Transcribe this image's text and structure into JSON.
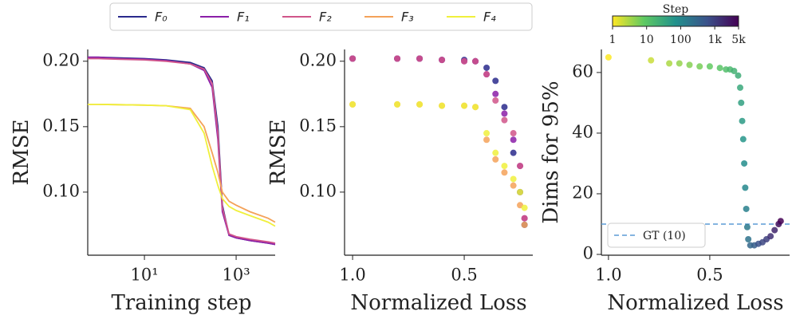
{
  "chart_data": [
    {
      "type": "line",
      "x_scale": "log",
      "xlabel": "Training step",
      "ylabel": "RMSE",
      "x": [
        0.58,
        1,
        3,
        10,
        30,
        100,
        200,
        300,
        400,
        500,
        700,
        1000,
        2000,
        5000,
        7100
      ],
      "xlim": [
        0.58,
        7100
      ],
      "xticks": [
        {
          "value": 10,
          "label": "10¹"
        },
        {
          "value": 1000,
          "label": "10³"
        }
      ],
      "ylim": [
        0.0518,
        0.209
      ],
      "yticks": [
        {
          "value": 0.2,
          "label": "0.20"
        },
        0.15,
        {
          "value": 0.1,
          "label": "0.10"
        }
      ],
      "series": [
        {
          "name": "F₀",
          "color": "#2a2a8c",
          "values": [
            0.203,
            0.203,
            0.2025,
            0.202,
            0.201,
            0.199,
            0.195,
            0.185,
            0.15,
            0.09,
            0.067,
            0.065,
            0.063,
            0.061,
            0.06
          ]
        },
        {
          "name": "F₁",
          "color": "#8b1fa8",
          "values": [
            0.203,
            0.203,
            0.202,
            0.2015,
            0.2005,
            0.198,
            0.193,
            0.18,
            0.14,
            0.085,
            0.067,
            0.065,
            0.063,
            0.061,
            0.06
          ]
        },
        {
          "name": "F₂",
          "color": "#d0558a",
          "values": [
            0.202,
            0.202,
            0.2015,
            0.201,
            0.2,
            0.198,
            0.194,
            0.183,
            0.145,
            0.088,
            0.068,
            0.066,
            0.064,
            0.062,
            0.061
          ]
        },
        {
          "name": "F₃",
          "color": "#f4a259",
          "values": [
            0.167,
            0.167,
            0.1668,
            0.1665,
            0.166,
            0.164,
            0.15,
            0.13,
            0.115,
            0.1,
            0.093,
            0.09,
            0.085,
            0.08,
            0.077
          ]
        },
        {
          "name": "F₄",
          "color": "#f0f03c",
          "values": [
            0.167,
            0.167,
            0.1668,
            0.1665,
            0.166,
            0.163,
            0.145,
            0.12,
            0.105,
            0.095,
            0.089,
            0.086,
            0.082,
            0.077,
            0.074
          ]
        }
      ]
    },
    {
      "type": "scatter",
      "xlabel": "Normalized Loss",
      "ylabel": "RMSE",
      "xlim": [
        1.036,
        0.193
      ],
      "xticks": [
        {
          "value": 1.0,
          "label": "1.0"
        },
        0.5
      ],
      "ylim": [
        0.0518,
        0.209
      ],
      "yticks": [
        {
          "value": 0.2,
          "label": "0.20"
        },
        0.15,
        {
          "value": 0.1,
          "label": "0.10"
        }
      ],
      "series": [
        {
          "color": "#2a2a8c",
          "x": [
            1.0,
            0.8,
            0.7,
            0.6,
            0.5,
            0.45,
            0.4,
            0.36,
            0.32,
            0.28,
            0.25,
            0.23
          ],
          "values": [
            0.202,
            0.202,
            0.202,
            0.201,
            0.201,
            0.2,
            0.195,
            0.185,
            0.165,
            0.13,
            0.1,
            0.075
          ]
        },
        {
          "color": "#8b1fa8",
          "x": [
            1.0,
            0.8,
            0.7,
            0.6,
            0.5,
            0.45,
            0.4,
            0.36,
            0.32,
            0.28,
            0.25,
            0.23
          ],
          "values": [
            0.202,
            0.202,
            0.202,
            0.201,
            0.2,
            0.2,
            0.19,
            0.175,
            0.16,
            0.14,
            0.12,
            0.08
          ]
        },
        {
          "color": "#d0558a",
          "x": [
            1.0,
            0.8,
            0.7,
            0.6,
            0.5,
            0.45,
            0.4,
            0.36,
            0.32,
            0.28,
            0.25,
            0.23
          ],
          "values": [
            0.202,
            0.202,
            0.202,
            0.201,
            0.2,
            0.2,
            0.19,
            0.17,
            0.155,
            0.145,
            0.12,
            0.08
          ]
        },
        {
          "color": "#f4a259",
          "x": [
            1.0,
            0.8,
            0.7,
            0.6,
            0.5,
            0.45,
            0.4,
            0.36,
            0.32,
            0.28,
            0.25,
            0.23
          ],
          "values": [
            0.167,
            0.167,
            0.167,
            0.166,
            0.166,
            0.165,
            0.14,
            0.125,
            0.115,
            0.105,
            0.09,
            0.075
          ]
        },
        {
          "color": "#f0f03c",
          "x": [
            1.0,
            0.8,
            0.7,
            0.6,
            0.5,
            0.45,
            0.4,
            0.36,
            0.32,
            0.28,
            0.25,
            0.23
          ],
          "values": [
            0.167,
            0.167,
            0.167,
            0.166,
            0.166,
            0.165,
            0.145,
            0.13,
            0.12,
            0.11,
            0.1,
            0.088
          ]
        }
      ]
    },
    {
      "type": "scatter",
      "xlabel": "Normalized Loss",
      "ylabel": "Dims for 95%",
      "xlim": [
        1.035,
        0.106
      ],
      "xticks": [
        {
          "value": 1.0,
          "label": "1.0"
        },
        0.5
      ],
      "ylim": [
        -0.26,
        67.6
      ],
      "yticks": [
        0,
        20,
        40,
        60
      ],
      "series": [
        {
          "x": [
            1.0,
            0.79,
            0.7,
            0.65,
            0.6,
            0.55,
            0.5,
            0.45,
            0.42,
            0.4,
            0.38,
            0.36,
            0.35,
            0.345,
            0.34,
            0.335,
            0.33,
            0.325,
            0.32,
            0.315,
            0.31,
            0.3,
            0.28,
            0.26,
            0.24,
            0.22,
            0.2,
            0.18,
            0.16,
            0.15
          ],
          "values": [
            65,
            64,
            63,
            63,
            62.5,
            62,
            62,
            61.5,
            61,
            61,
            60.5,
            59,
            55,
            50,
            44,
            38,
            30,
            22,
            15,
            9,
            5,
            3,
            3,
            3.5,
            4,
            5,
            6,
            8,
            10,
            11
          ],
          "steps": [
            1,
            2,
            3,
            4,
            5,
            6,
            8,
            10,
            13,
            16,
            20,
            25,
            30,
            40,
            50,
            60,
            80,
            100,
            130,
            160,
            200,
            300,
            400,
            600,
            800,
            1000,
            1500,
            2000,
            3500,
            5000
          ]
        }
      ],
      "hline": {
        "value": 10,
        "label": "GT (10)",
        "color": "#5b9bd5"
      },
      "colorbar": {
        "title": "Step",
        "scale": "log",
        "lim": [
          1,
          5000
        ],
        "ticks": [
          1,
          10,
          100,
          {
            "value": 1000,
            "label": "1k"
          },
          {
            "value": 5000,
            "label": "5k"
          }
        ],
        "colormap": [
          "#fde725",
          "#5ec962",
          "#21918c",
          "#3b528b",
          "#440154"
        ]
      }
    }
  ]
}
